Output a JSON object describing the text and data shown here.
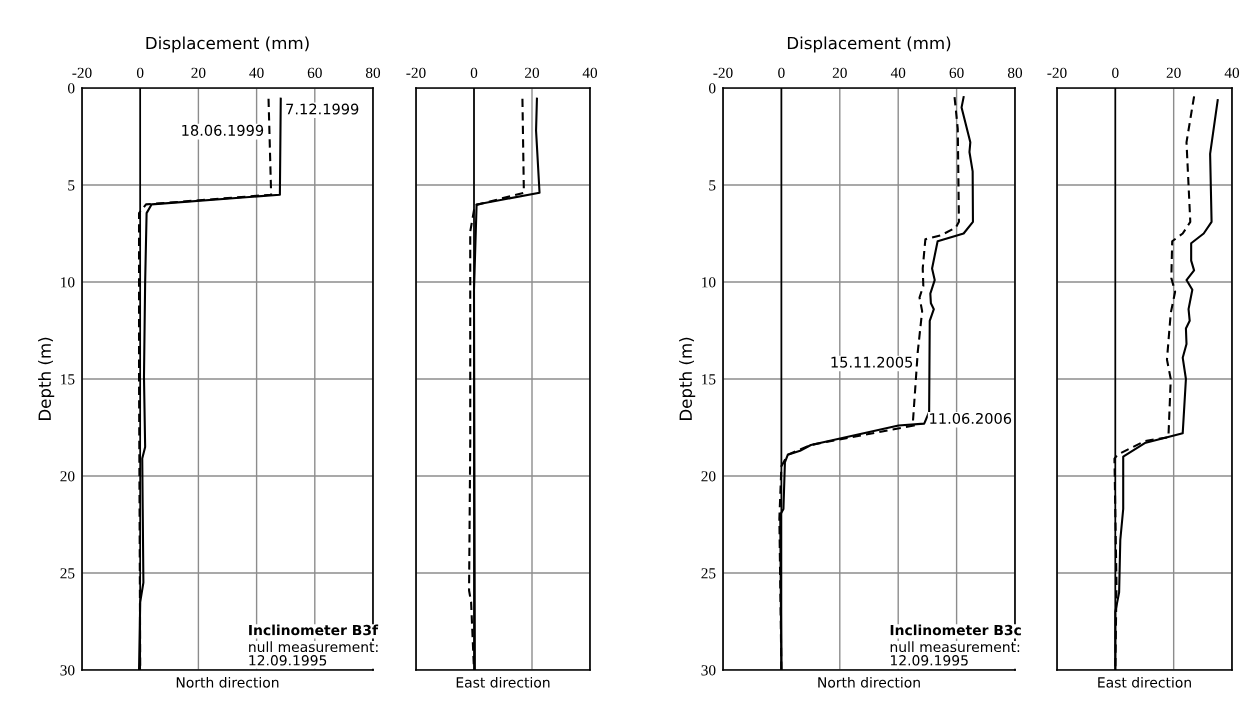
{
  "chart_data": [
    {
      "type": "line",
      "title": "Displacement (mm)",
      "xlabel": "North direction",
      "ylabel": "Depth (m)",
      "xlim": [
        -20,
        80
      ],
      "xticks": [
        -20,
        0,
        20,
        40,
        60,
        80
      ],
      "ylim": [
        30,
        0
      ],
      "yticks": [
        0,
        5,
        10,
        15,
        20,
        25,
        30
      ],
      "grid": true,
      "ref_lines": [
        {
          "axis": "x",
          "value": 0,
          "color": "#000000"
        }
      ],
      "series": [
        {
          "name": "7.12.1999",
          "color": "#000000",
          "line_style": "solid",
          "x": [
            48.3,
            48.0,
            3.9,
            2.2,
            1.7,
            1.3,
            1.7,
            0.7,
            1.1,
            0,
            -0.4
          ],
          "values": [
            0.55,
            5.5,
            6.0,
            6.45,
            10,
            14.9,
            18.5,
            19.1,
            25.5,
            26.5,
            30
          ]
        },
        {
          "name": "18.06.1999",
          "color": "#000000",
          "line_style": "dashed",
          "x": [
            44.1,
            45,
            2,
            -0.4,
            -0.4,
            0
          ],
          "values": [
            0.55,
            5.5,
            6.0,
            6.45,
            14.9,
            30
          ]
        }
      ],
      "annotations": [
        "Inclinometer B3f",
        "null measurement:\n12.09.1995"
      ]
    },
    {
      "type": "line",
      "xlabel": "East direction",
      "xlim": [
        -20,
        40
      ],
      "xticks": [
        -20,
        0,
        20,
        40
      ],
      "ylim": [
        30,
        0
      ],
      "yticks": [
        0,
        5,
        10,
        15,
        20,
        25,
        30
      ],
      "tick_labels": "x",
      "grid": true,
      "ref_lines": [
        {
          "axis": "x",
          "value": 0,
          "color": "#000000"
        }
      ],
      "series": [
        {
          "color": "#000000",
          "line_style": "solid",
          "x": [
            21.7,
            21.4,
            22.6,
            0.9,
            0,
            0.3
          ],
          "values": [
            0.55,
            2.2,
            5.4,
            6.0,
            10.4,
            30
          ]
        },
        {
          "color": "#000000",
          "line_style": "dashed",
          "x": [
            16.7,
            17.2,
            0.3,
            -1.3,
            -1.3,
            -1.7,
            -1,
            0
          ],
          "values": [
            0.55,
            5.4,
            6.05,
            7.4,
            18.3,
            25.9,
            26.5,
            30
          ]
        }
      ]
    },
    {
      "type": "line",
      "title": "Displacement (mm)",
      "xlabel": "North direction",
      "ylabel": "Depth (m)",
      "xlim": [
        -20,
        80
      ],
      "xticks": [
        -20,
        0,
        20,
        40,
        60,
        80
      ],
      "ylim": [
        30,
        0
      ],
      "yticks": [
        0,
        5,
        10,
        15,
        20,
        25,
        30
      ],
      "grid": true,
      "ref_lines": [
        {
          "axis": "x",
          "value": 0,
          "color": "#000000"
        }
      ],
      "series": [
        {
          "name": "11.06.2006",
          "color": "#000000",
          "line_style": "solid",
          "x": [
            62.4,
            61.7,
            64.7,
            64.4,
            65.5,
            65.6,
            62.4,
            53.5,
            51.6,
            52.5,
            51,
            51.2,
            52.2,
            50.8,
            50.6,
            48.9,
            40.1,
            10.1,
            6.4,
            2.2,
            1.2,
            0.7,
            -0.4,
            0
          ],
          "values": [
            0.47,
            1.0,
            2.8,
            3.3,
            4.3,
            6.9,
            7.5,
            7.9,
            9.3,
            9.9,
            10.6,
            11.1,
            11.4,
            12.0,
            16.7,
            17.3,
            17.4,
            18.4,
            18.7,
            18.9,
            19.3,
            21.7,
            22.0,
            30
          ]
        },
        {
          "name": "15.11.2005",
          "color": "#000000",
          "line_style": "dashed",
          "x": [
            59.3,
            60.4,
            60.8,
            59.7,
            54.5,
            49.3,
            48.4,
            48.6,
            47.3,
            48.2,
            46.7,
            45,
            45.4,
            10.1,
            2.2,
            0,
            -0.7,
            0
          ],
          "values": [
            0.47,
            2.1,
            6.9,
            7.2,
            7.6,
            7.8,
            9.3,
            10.2,
            10.8,
            11.5,
            13.6,
            17.3,
            17.4,
            18.4,
            18.9,
            19.5,
            22.2,
            30
          ]
        }
      ],
      "annotations": [
        "Inclinometer B3c",
        "null measurement:\n12.09.1995"
      ]
    },
    {
      "type": "line",
      "xlabel": "East direction",
      "xlim": [
        -20,
        40
      ],
      "xticks": [
        -20,
        0,
        20,
        40
      ],
      "ylim": [
        30,
        0
      ],
      "yticks": [
        0,
        5,
        10,
        15,
        20,
        25,
        30
      ],
      "tick_labels": "x",
      "grid": true,
      "ref_lines": [
        {
          "axis": "x",
          "value": 0,
          "color": "#000000"
        }
      ],
      "series": [
        {
          "color": "#000000",
          "line_style": "solid",
          "x": [
            35.1,
            32.5,
            33,
            30.3,
            26,
            26,
            27,
            24.4,
            26.4,
            25.1,
            25.5,
            24.2,
            24.4,
            23.1,
            24.2,
            23.1,
            10.1,
            2.7,
            2.7,
            1.7,
            1.3,
            0,
            0
          ],
          "values": [
            0.63,
            3.4,
            6.9,
            7.5,
            8.0,
            8.9,
            9.4,
            9.9,
            10.4,
            11.4,
            12.0,
            12.4,
            13.2,
            13.9,
            15.0,
            17.8,
            18.3,
            19.0,
            21.7,
            23.3,
            26.0,
            27.0,
            30
          ]
        },
        {
          "color": "#000000",
          "line_style": "dashed",
          "x": [
            27,
            24.4,
            25.7,
            23.1,
            19.5,
            19.2,
            20.5,
            19,
            17.7,
            19,
            18.2,
            10.1,
            0.8,
            -0.3,
            0.4,
            0
          ],
          "values": [
            0.43,
            2.8,
            6.9,
            7.5,
            7.9,
            9.8,
            10.5,
            11.6,
            14.0,
            15.0,
            18.0,
            18.2,
            18.9,
            19.1,
            25.6,
            30
          ]
        }
      ]
    }
  ]
}
